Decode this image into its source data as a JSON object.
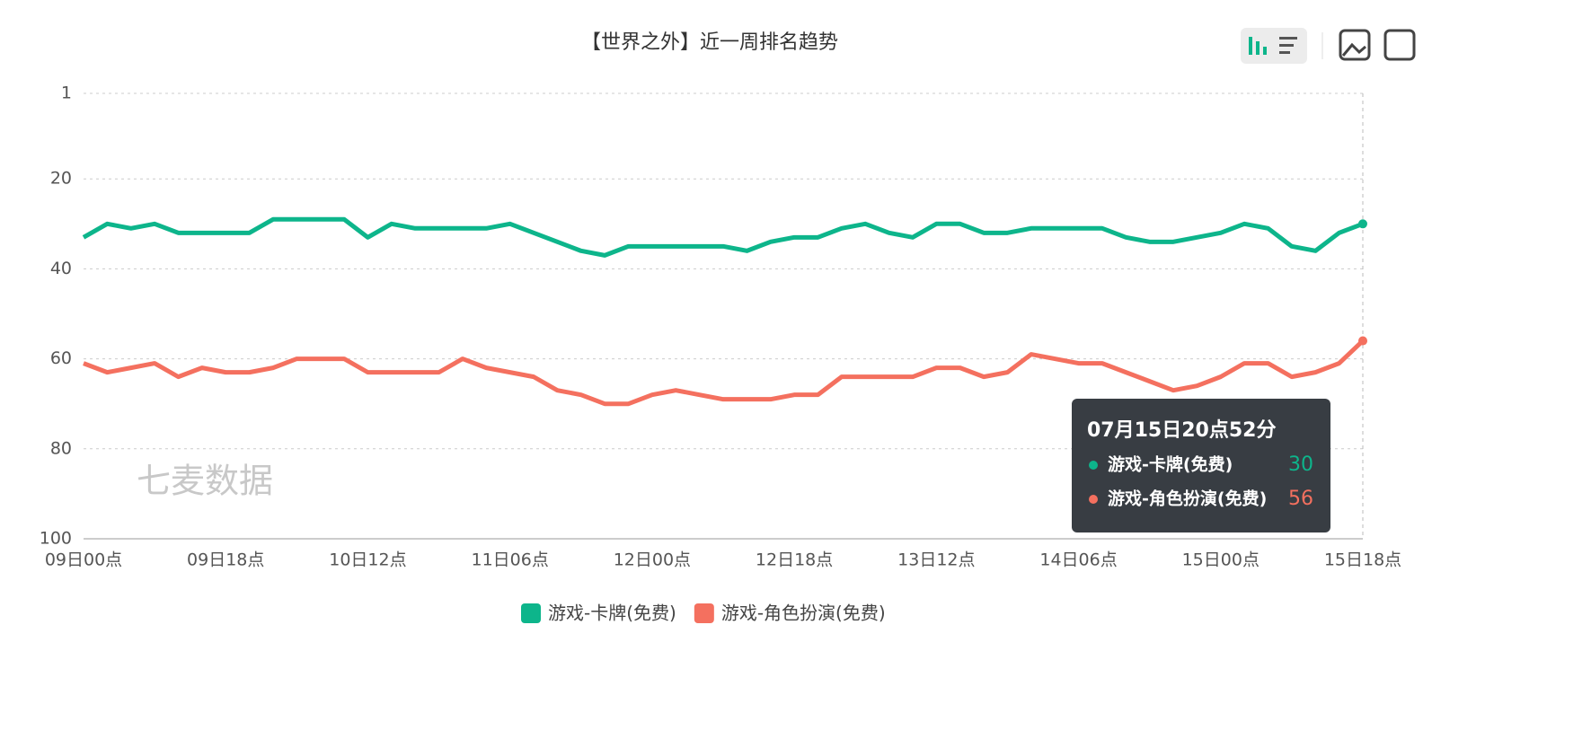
{
  "chart_data": {
    "type": "line",
    "title": "【世界之外】近一周排名趋势",
    "watermark": "七麦数据",
    "categories": [
      "09日00点",
      null,
      null,
      null,
      null,
      null,
      "09日18点",
      null,
      null,
      null,
      null,
      null,
      "10日12点",
      null,
      null,
      null,
      null,
      null,
      "11日06点",
      null,
      null,
      null,
      null,
      null,
      "12日00点",
      null,
      null,
      null,
      null,
      null,
      "12日18点",
      null,
      null,
      null,
      null,
      null,
      "13日12点",
      null,
      null,
      null,
      null,
      null,
      "14日06点",
      null,
      null,
      null,
      null,
      null,
      "15日00点",
      null,
      null,
      null,
      null,
      null,
      "15日18点"
    ],
    "series": [
      {
        "name": "游戏-卡牌(免费)",
        "color": "#0db58b",
        "values": [
          33,
          30,
          31,
          30,
          32,
          32,
          32,
          32,
          29,
          29,
          29,
          29,
          33,
          30,
          31,
          31,
          31,
          31,
          30,
          32,
          34,
          36,
          37,
          35,
          35,
          35,
          35,
          35,
          36,
          34,
          33,
          33,
          31,
          30,
          32,
          33,
          30,
          30,
          32,
          32,
          31,
          31,
          31,
          31,
          33,
          34,
          34,
          33,
          32,
          30,
          31,
          35,
          36,
          32,
          30
        ]
      },
      {
        "name": "游戏-角色扮演(免费)",
        "color": "#f4705f",
        "values": [
          61,
          63,
          62,
          61,
          64,
          62,
          63,
          63,
          62,
          60,
          60,
          60,
          63,
          63,
          63,
          63,
          60,
          62,
          63,
          64,
          67,
          68,
          70,
          70,
          68,
          67,
          68,
          69,
          69,
          69,
          68,
          68,
          64,
          64,
          64,
          64,
          62,
          62,
          64,
          63,
          59,
          60,
          61,
          61,
          63,
          65,
          67,
          66,
          64,
          61,
          61,
          64,
          63,
          61,
          56
        ]
      }
    ],
    "ylim": [
      1,
      100
    ],
    "inverse_y": true,
    "yticks": [
      1,
      20,
      40,
      60,
      80,
      100
    ],
    "grid": true,
    "legend": "bottom",
    "tooltip_title": "07月15日20点52分"
  }
}
